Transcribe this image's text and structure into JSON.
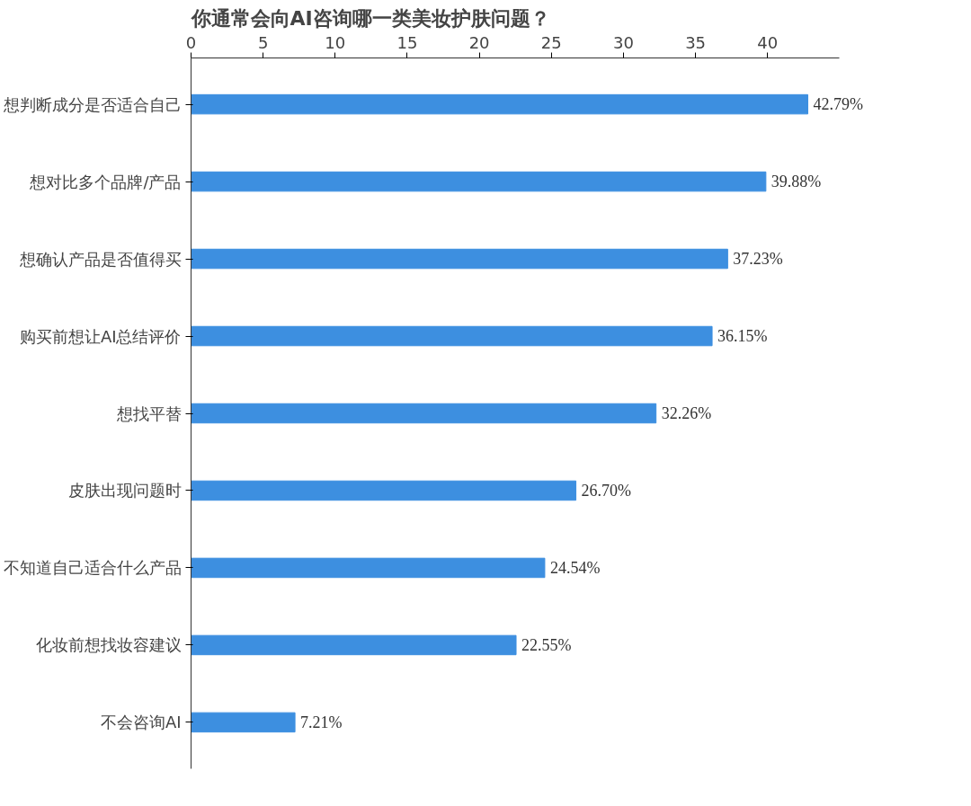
{
  "chart_data": {
    "type": "bar",
    "orientation": "horizontal",
    "title": "你通常会向AI咨询哪一类美妆护肤问题？",
    "categories": [
      "想判断成分是否适合自己",
      "想对比多个品牌/产品",
      "想确认产品是否值得买",
      "购买前想让AI总结评价",
      "想找平替",
      "皮肤出现问题时",
      "不知道自己适合什么产品",
      "化妆前想找妆容建议",
      "不会咨询AI"
    ],
    "values": [
      42.79,
      39.88,
      37.23,
      36.15,
      32.26,
      26.7,
      24.54,
      22.55,
      7.21
    ],
    "value_labels": [
      "42.79%",
      "39.88%",
      "37.23%",
      "36.15%",
      "32.26%",
      "26.70%",
      "24.54%",
      "22.55%",
      "7.21%"
    ],
    "color": "#3d8fe0",
    "xlim": [
      0,
      45
    ],
    "xticks": [
      0,
      5,
      10,
      15,
      20,
      25,
      30,
      35,
      40
    ],
    "grid": false
  }
}
